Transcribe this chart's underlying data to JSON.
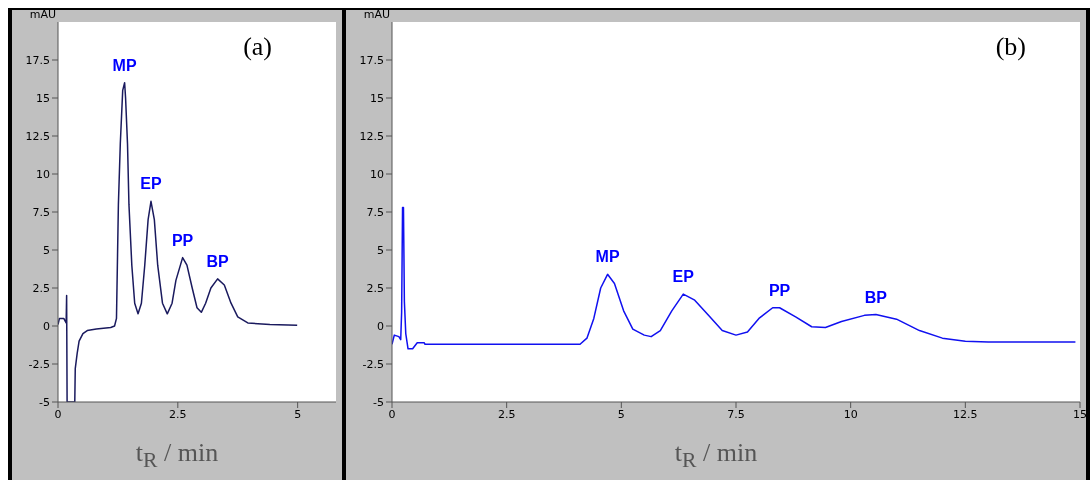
{
  "chart_data": [
    {
      "type": "line",
      "title": "(a)",
      "xlabel": "t$_{R}$ / min",
      "ylabel": "mAU",
      "xlim": [
        0,
        5.8
      ],
      "xticks": [
        0,
        2.5,
        5
      ],
      "ylim": [
        -5,
        20
      ],
      "yticks": [
        -5,
        -2.5,
        0,
        2.5,
        5,
        7.5,
        10,
        12.5,
        15,
        17.5
      ],
      "grid": false,
      "marker": "none",
      "series": [
        {
          "color": "#1a1a5e",
          "x": [
            0,
            0.03,
            0.06,
            0.12,
            0.17,
            0.18,
            0.19,
            0.2,
            0.35,
            0.36,
            0.4,
            0.44,
            0.52,
            0.61,
            0.8,
            1.1,
            1.18,
            1.22,
            1.26,
            1.3,
            1.35,
            1.39,
            1.41,
            1.45,
            1.48,
            1.54,
            1.6,
            1.67,
            1.74,
            1.81,
            1.88,
            1.94,
            2.01,
            2.08,
            2.18,
            2.28,
            2.38,
            2.46,
            2.6,
            2.69,
            2.8,
            2.9,
            2.99,
            3.08,
            3.19,
            3.33,
            3.47,
            3.61,
            3.75,
            3.96,
            4.42,
            4.99
          ],
          "values": [
            0.1,
            0.5,
            0.5,
            0.5,
            0.2,
            2,
            -5,
            -5,
            -5,
            -2.8,
            -1.8,
            -1,
            -0.5,
            -0.3,
            -0.2,
            -0.1,
            0,
            0.5,
            8,
            12,
            15.5,
            16,
            15,
            12,
            8,
            4,
            1.5,
            0.8,
            1.5,
            4,
            7,
            8.2,
            7,
            4,
            1.5,
            0.8,
            1.5,
            3,
            4.5,
            4,
            2.5,
            1.2,
            0.9,
            1.5,
            2.5,
            3.1,
            2.7,
            1.5,
            0.6,
            0.2,
            0.1,
            0.05
          ]
        }
      ],
      "annotations": [
        {
          "text": "MP",
          "x": 1.39,
          "y": 16
        },
        {
          "text": "EP",
          "x": 1.94,
          "y": 8.2
        },
        {
          "text": "PP",
          "x": 2.6,
          "y": 4.5
        },
        {
          "text": "BP",
          "x": 3.33,
          "y": 3.1
        }
      ]
    },
    {
      "type": "line",
      "title": "(b)",
      "xlabel": "t$_{R}$ / min",
      "ylabel": "mAU",
      "xlim": [
        0,
        15
      ],
      "xticks": [
        0,
        2.5,
        5,
        7.5,
        10,
        12.5,
        15
      ],
      "ylim": [
        -5,
        20
      ],
      "yticks": [
        -5,
        -2.5,
        0,
        2.5,
        5,
        7.5,
        10,
        12.5,
        15,
        17.5
      ],
      "grid": false,
      "marker": "none",
      "series": [
        {
          "color": "#1010f0",
          "x": [
            0,
            0.05,
            0.15,
            0.19,
            0.21,
            0.23,
            0.25,
            0.27,
            0.3,
            0.35,
            0.45,
            0.55,
            0.7,
            0.72,
            4.1,
            4.25,
            4.4,
            4.55,
            4.7,
            4.85,
            5.05,
            5.25,
            5.5,
            5.65,
            5.85,
            6.1,
            6.35,
            6.6,
            6.9,
            7.2,
            7.5,
            7.75,
            8.0,
            8.3,
            8.45,
            8.8,
            9.15,
            9.45,
            9.8,
            10.3,
            10.55,
            11.0,
            11.5,
            12.0,
            12.5,
            13.0,
            14.9
          ],
          "values": [
            -1.2,
            -0.6,
            -0.7,
            -0.9,
            0.9,
            7.8,
            7.8,
            1.6,
            -0.5,
            -1.5,
            -1.5,
            -1.1,
            -1.1,
            -1.2,
            -1.2,
            -0.8,
            0.5,
            2.5,
            3.4,
            2.8,
            1,
            -0.2,
            -0.6,
            -0.7,
            -0.3,
            1,
            2.1,
            1.7,
            0.7,
            -0.3,
            -0.6,
            -0.4,
            0.5,
            1.2,
            1.2,
            0.6,
            -0.05,
            -0.1,
            0.3,
            0.7,
            0.75,
            0.45,
            -0.3,
            -0.8,
            -1,
            -1.05,
            -1.05
          ]
        }
      ],
      "annotations": [
        {
          "text": "MP",
          "x": 4.7,
          "y": 3.4
        },
        {
          "text": "EP",
          "x": 6.35,
          "y": 2.1
        },
        {
          "text": "PP",
          "x": 8.45,
          "y": 1.2
        },
        {
          "text": "BP",
          "x": 10.55,
          "y": 0.75
        }
      ]
    }
  ]
}
